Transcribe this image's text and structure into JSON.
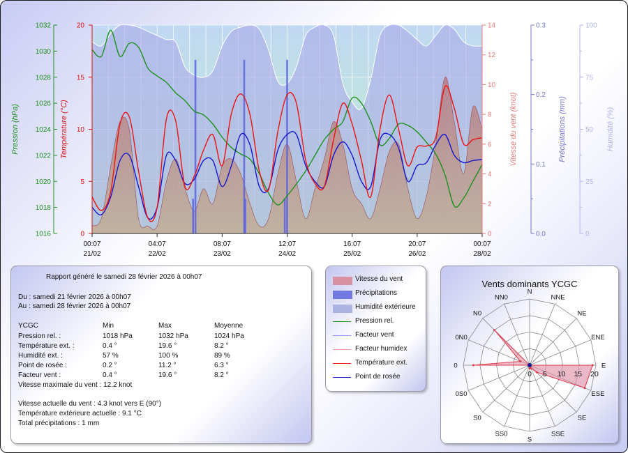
{
  "chart_data": [
    {
      "type": "line",
      "x_ticks": [
        {
          "time": "00:07",
          "date": "21/02"
        },
        {
          "time": "04:07",
          "date": "22/02"
        },
        {
          "time": "08:07",
          "date": "23/02"
        },
        {
          "time": "12:07",
          "date": "24/02"
        },
        {
          "time": "16:07",
          "date": "25/02"
        },
        {
          "time": "20:07",
          "date": "26/02"
        },
        {
          "time": "00:07",
          "date": "28/02"
        }
      ],
      "x_hours": [
        0,
        4,
        8,
        12,
        16,
        20,
        24,
        28,
        32,
        36,
        40,
        44,
        48,
        52,
        56,
        60,
        64,
        68,
        72,
        76,
        80,
        84,
        88,
        92,
        96,
        100,
        104,
        108,
        112,
        116,
        120,
        124,
        128,
        132,
        136,
        140,
        144,
        148,
        152,
        156,
        160,
        164,
        168
      ],
      "axes": {
        "pressure": {
          "label": "Pression (hPa)",
          "min": 1016,
          "max": 1032,
          "ticks": [
            1016,
            1018,
            1020,
            1022,
            1024,
            1026,
            1028,
            1030,
            1032
          ],
          "color": "#1e8f1e"
        },
        "temperature": {
          "label": "Température (°C)",
          "min": 0,
          "max": 20,
          "ticks": [
            0,
            5,
            10,
            15,
            20
          ],
          "color": "#dd1111"
        },
        "wind": {
          "label": "Vitesse du vent (knot)",
          "min": 0,
          "max": 14,
          "ticks": [
            0,
            2,
            4,
            6,
            8,
            10,
            12,
            14
          ],
          "color": "#e87878"
        },
        "precip": {
          "label": "Précipitations (mm)",
          "min": 0,
          "max": 0.3,
          "ticks": [
            0.0,
            0.1,
            0.2,
            0.3
          ],
          "tick_labels": [
            "0.0",
            "0.1",
            "0.2",
            "0.3"
          ],
          "minor_ticks": [
            0.05,
            0.15,
            0.25
          ],
          "color": "#7777cc"
        },
        "humidity": {
          "label": "Humidité (%)",
          "min": 0,
          "max": 100,
          "ticks": [
            0,
            25,
            50,
            75,
            100
          ],
          "minor_ticks": [
            12.5,
            37.5,
            62.5,
            87.5
          ],
          "color": "#b4b4e6"
        }
      },
      "series": [
        {
          "name": "Humidité extérieure",
          "axis": "humidity",
          "values": [
            92,
            90,
            96,
            100,
            100,
            99,
            97,
            95,
            93,
            92,
            80,
            76,
            75,
            78,
            90,
            97,
            99,
            100,
            98,
            88,
            73,
            72,
            80,
            95,
            99,
            100,
            95,
            72,
            63,
            60,
            74,
            95,
            100,
            100,
            97,
            93,
            90,
            95,
            100,
            98,
            92,
            90,
            90
          ],
          "color": "#aaaaea",
          "style": "area"
        },
        {
          "name": "Vitesse du vent",
          "axis": "wind",
          "values": [
            0.5,
            1.0,
            4.5,
            7.5,
            7.0,
            1.0,
            0.5,
            0.5,
            3.5,
            5.0,
            3.0,
            1.5,
            3.0,
            2.0,
            4.5,
            5.0,
            4.0,
            2.0,
            0.5,
            1.0,
            4.0,
            6.0,
            3.5,
            1.0,
            3.0,
            5.0,
            7.5,
            6.0,
            3.0,
            2.0,
            1.0,
            3.0,
            5.5,
            6.0,
            3.0,
            1.0,
            2.5,
            6.0,
            10.5,
            7.5,
            4.0,
            8.5,
            7.0
          ],
          "color": "#b07070",
          "style": "area"
        },
        {
          "name": "Pression rel.",
          "axis": "pressure",
          "values": [
            1030.1,
            1029.6,
            1031.6,
            1029.6,
            1030.6,
            1030.3,
            1028.7,
            1028.1,
            1027.6,
            1026.8,
            1026.2,
            1025.4,
            1025.1,
            1024.4,
            1023.4,
            1022.6,
            1022.1,
            1021.7,
            1020.6,
            1019.1,
            1018.2,
            1018.9,
            1019.8,
            1020.8,
            1022.0,
            1023.2,
            1024.0,
            1024.6,
            1026.4,
            1026.0,
            1024.6,
            1022.8,
            1023.3,
            1024.4,
            1024.3,
            1023.8,
            1023.0,
            1022.1,
            1020.5,
            1018.1,
            1018.7,
            1020.0,
            1021.3
          ],
          "color": "#1e8f1e",
          "style": "line"
        },
        {
          "name": "Point de rosée",
          "axis": "temperature",
          "values": [
            2.5,
            1.8,
            3.5,
            7.0,
            7.5,
            4.5,
            1.5,
            2.5,
            7.5,
            7.0,
            4.8,
            5.2,
            7.0,
            7.0,
            4.5,
            6.5,
            9.5,
            8.5,
            4.5,
            4.3,
            8.0,
            9.5,
            9.5,
            6.5,
            5.0,
            4.5,
            7.5,
            8.8,
            7.5,
            5.0,
            4.5,
            9.0,
            9.5,
            8.2,
            5.0,
            6.5,
            6.8,
            8.5,
            9.5,
            7.5,
            6.8,
            7.0,
            7.1
          ],
          "color": "#1616cc",
          "style": "line"
        },
        {
          "name": "Température ext.",
          "axis": "temperature",
          "values": [
            3.5,
            2.2,
            4.0,
            10.5,
            11.2,
            6.0,
            1.5,
            2.5,
            11.0,
            10.8,
            4.5,
            5.5,
            8.0,
            9.5,
            6.5,
            11.5,
            13.4,
            11.4,
            6.0,
            4.2,
            9.8,
            13.3,
            12.5,
            7.0,
            4.8,
            4.5,
            9.0,
            12.5,
            10.5,
            7.0,
            3.5,
            10.0,
            13.3,
            10.0,
            6.5,
            8.3,
            8.4,
            9.2,
            14.1,
            12.0,
            8.6,
            9.0,
            9.2
          ],
          "color": "#ee1111",
          "style": "line"
        }
      ],
      "precip_spikes": [
        {
          "hour": 43.5,
          "value": 0.05
        },
        {
          "hour": 44.5,
          "value": 0.25
        },
        {
          "hour": 65.5,
          "value": 0.25
        },
        {
          "hour": 66.0,
          "value": 0.05
        },
        {
          "hour": 83.0,
          "value": 0.05
        },
        {
          "hour": 84.0,
          "value": 0.25
        }
      ]
    },
    {
      "type": "radar",
      "title": "Vents dominants YCGC",
      "directions": [
        "N",
        "NNE",
        "NE",
        "ENE",
        "E",
        "ESE",
        "SE",
        "SSE",
        "S",
        "SS0",
        "S0",
        "0S0",
        "0",
        "0N0",
        "N0",
        "NN0"
      ],
      "r_ticks": [
        0,
        5,
        10,
        15,
        20
      ],
      "r_tick_labels": [
        "0",
        "5",
        "10",
        "15",
        "20"
      ],
      "values": [
        0,
        0,
        0,
        0,
        19,
        18,
        3,
        1,
        1,
        0,
        0,
        0,
        17,
        3,
        15,
        0
      ],
      "fill": "#e08aa5",
      "line": "#dd3a4a"
    }
  ],
  "report": {
    "heading": "Rapport généré le samedi 28 février 2026 à 00h07",
    "du": "Du : samedi 21 février 2026 à 00h07",
    "au": "Au : samedi 28 février 2026 à 00h07",
    "header": [
      "YCGC",
      "Min",
      "Max",
      "Moyenne"
    ],
    "rows": [
      [
        "Pression rel. :",
        "1018 hPa",
        "1032 hPa",
        "1024 hPa"
      ],
      [
        "Température ext. :",
        "0.4 °",
        "19.6 °",
        "8.2 °"
      ],
      [
        "Humidité ext. :",
        "57 %",
        "100 %",
        "89 %"
      ],
      [
        "Point de rosée :",
        "0.2 °",
        "11.2 °",
        "6.3 °"
      ],
      [
        "Facteur vent :",
        "0.4 °",
        "19.6 °",
        "8.2 °"
      ]
    ],
    "max_wind": "Vitesse maximale du vent : 12.2 knot",
    "current_wind": "Vitesse actuelle du vent : 4.3 knot vers  E (90°)",
    "current_temp": "Température extérieure actuelle :  9.1 °C",
    "total_precip": "Total précipitations :  1 mm"
  },
  "legend": [
    {
      "label": "Vitesse du vent",
      "kind": "swatch",
      "color": "#d98e9e"
    },
    {
      "label": "Précipitations",
      "kind": "swatch",
      "color": "#6d73e0"
    },
    {
      "label": "Humidité extérieure",
      "kind": "swatch",
      "color": "#a9b3e0"
    },
    {
      "label": "Pression rel.",
      "kind": "line",
      "color": "#1e8f1e"
    },
    {
      "label": "Facteur vent",
      "kind": "line",
      "color": "#9a9aee"
    },
    {
      "label": "Facteur humidex",
      "kind": "line",
      "color": "#f0a0a0"
    },
    {
      "label": "Température ext.",
      "kind": "line",
      "color": "#ee1111"
    },
    {
      "label": "Point de rosée",
      "kind": "line",
      "color": "#1616cc"
    }
  ]
}
